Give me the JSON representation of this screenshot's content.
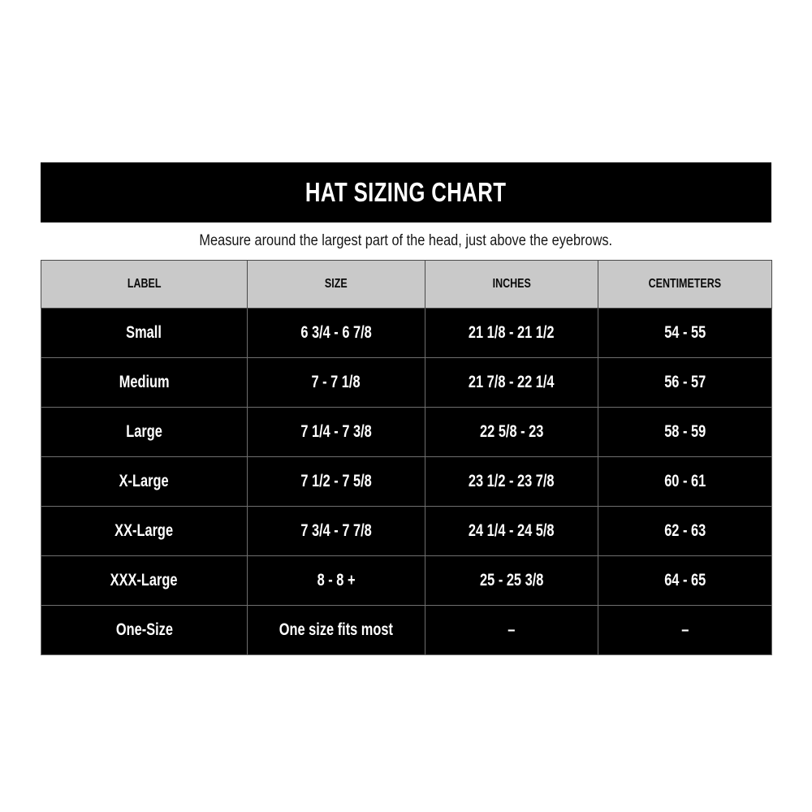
{
  "chart_data": {
    "type": "table",
    "title": "HAT SIZING CHART",
    "subtitle": "Measure around the largest part of the head, just above the eyebrows.",
    "columns": [
      "LABEL",
      "SIZE",
      "INCHES",
      "CENTIMETERS"
    ],
    "rows": [
      [
        "Small",
        "6 3/4 - 6 7/8",
        "21 1/8 - 21 1/2",
        "54 - 55"
      ],
      [
        "Medium",
        "7 - 7 1/8",
        "21 7/8 - 22 1/4",
        "56 - 57"
      ],
      [
        "Large",
        "7 1/4 - 7 3/8",
        "22 5/8 - 23",
        "58 - 59"
      ],
      [
        "X-Large",
        "7 1/2 - 7 5/8",
        "23 1/2 - 23 7/8",
        "60 - 61"
      ],
      [
        "XX-Large",
        "7 3/4 - 7 7/8",
        "24 1/4 - 24 5/8",
        "62 - 63"
      ],
      [
        "XXX-Large",
        "8 - 8 +",
        "25 - 25 3/8",
        "64 - 65"
      ],
      [
        "One-Size",
        "One size fits most",
        "–",
        "–"
      ]
    ],
    "layout_hints": {
      "grid": "thin gray lines between black cells",
      "header_row_position": "top"
    }
  },
  "colors": {
    "page_bg": "#ffffff",
    "title_bar_bg": "#000000",
    "title_text": "#ffffff",
    "subtitle_text": "#161616",
    "header_row_bg": "#c9c9c9",
    "header_row_text": "#0a0a0a",
    "data_row_bg": "#000000",
    "data_row_text": "#ffffff",
    "grid_line": "#6f6f6f"
  }
}
